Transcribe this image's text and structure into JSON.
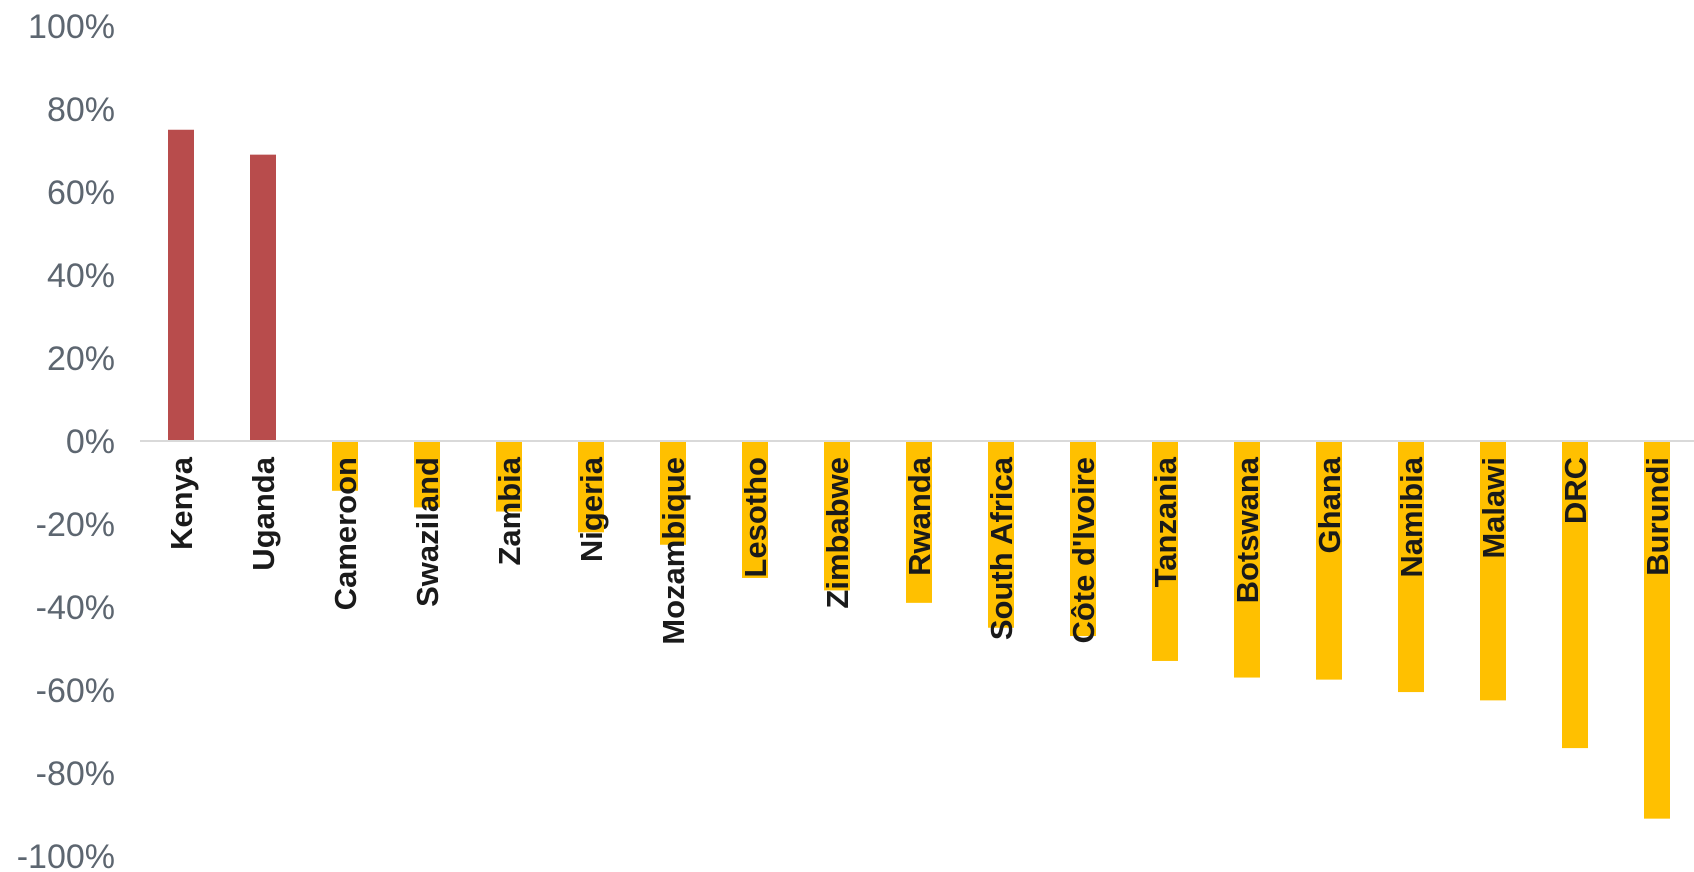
{
  "chart_data": {
    "type": "bar",
    "title": "",
    "xlabel": "",
    "ylabel": "",
    "ylim": [
      -100,
      100
    ],
    "y_tick_labels": [
      "100%",
      "80%",
      "60%",
      "40%",
      "20%",
      "0%",
      "-20%",
      "-40%",
      "-60%",
      "-80%",
      "-100%"
    ],
    "y_tick_values": [
      100,
      80,
      60,
      40,
      20,
      0,
      -20,
      -40,
      -60,
      -80,
      -100
    ],
    "grid": false,
    "categories": [
      "Kenya",
      "Uganda",
      "Cameroon",
      "Swaziland",
      "Zambia",
      "Nigeria",
      "Mozambique",
      "Lesotho",
      "Zimbabwe",
      "Rwanda",
      "South Africa",
      "Côte d'Ivoire",
      "Tanzania",
      "Botswana",
      "Ghana",
      "Namibia",
      "Malawi",
      "DRC",
      "Burundi"
    ],
    "values": [
      75,
      69,
      -12,
      -16,
      -17,
      -22,
      -25,
      -33,
      -36,
      -39,
      -45,
      -47,
      -53,
      -57,
      -57.5,
      -60.5,
      -62.5,
      -74,
      -91
    ],
    "colors": {
      "positive": "#b84c4c",
      "negative": "#ffc000",
      "axis": "#d9d9d9"
    }
  }
}
